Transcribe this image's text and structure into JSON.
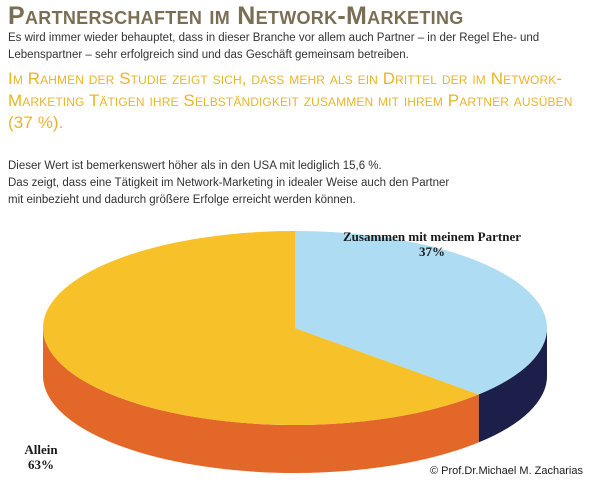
{
  "header": {
    "title": "Partnerschaften im Network-Marketing",
    "intro": "Es wird immer wieder behauptet, dass in dieser Branche vor allem auch Partner – in der Regel Ehe- und Lebenspartner – sehr erfolgreich sind und das Geschäft gemeinsam betreiben.",
    "highlight": "Im Rahmen der Studie zeigt sich, dass mehr als ein Drittel der im Network-Marketing Tätigen ihre Selbständigkeit zusammen mit ihrem Partner ausüben (37 %)."
  },
  "body": {
    "line1": "Dieser Wert ist bemerkenswert höher als in den USA mit lediglich 15,6 %.",
    "line2": "Das zeigt, dass eine Tätigkeit im Network-Marketing in idealer Weise auch den Partner",
    "line3": "mit einbezieht und dadurch größere Erfolge erreicht werden können."
  },
  "chart_data": {
    "type": "pie",
    "style": "3d",
    "slices": [
      {
        "label": "Zusammen mit meinem Partner",
        "value_label": "37%",
        "value": 37,
        "color": "#aedcf2",
        "side_color": "#1c1f4a"
      },
      {
        "label": "Allein",
        "value_label": "63%",
        "value": 63,
        "color": "#f7c12a",
        "side_color": "#e4672a"
      }
    ]
  },
  "footer": {
    "copyright": "© Prof.Dr.Michael M. Zacharias"
  }
}
